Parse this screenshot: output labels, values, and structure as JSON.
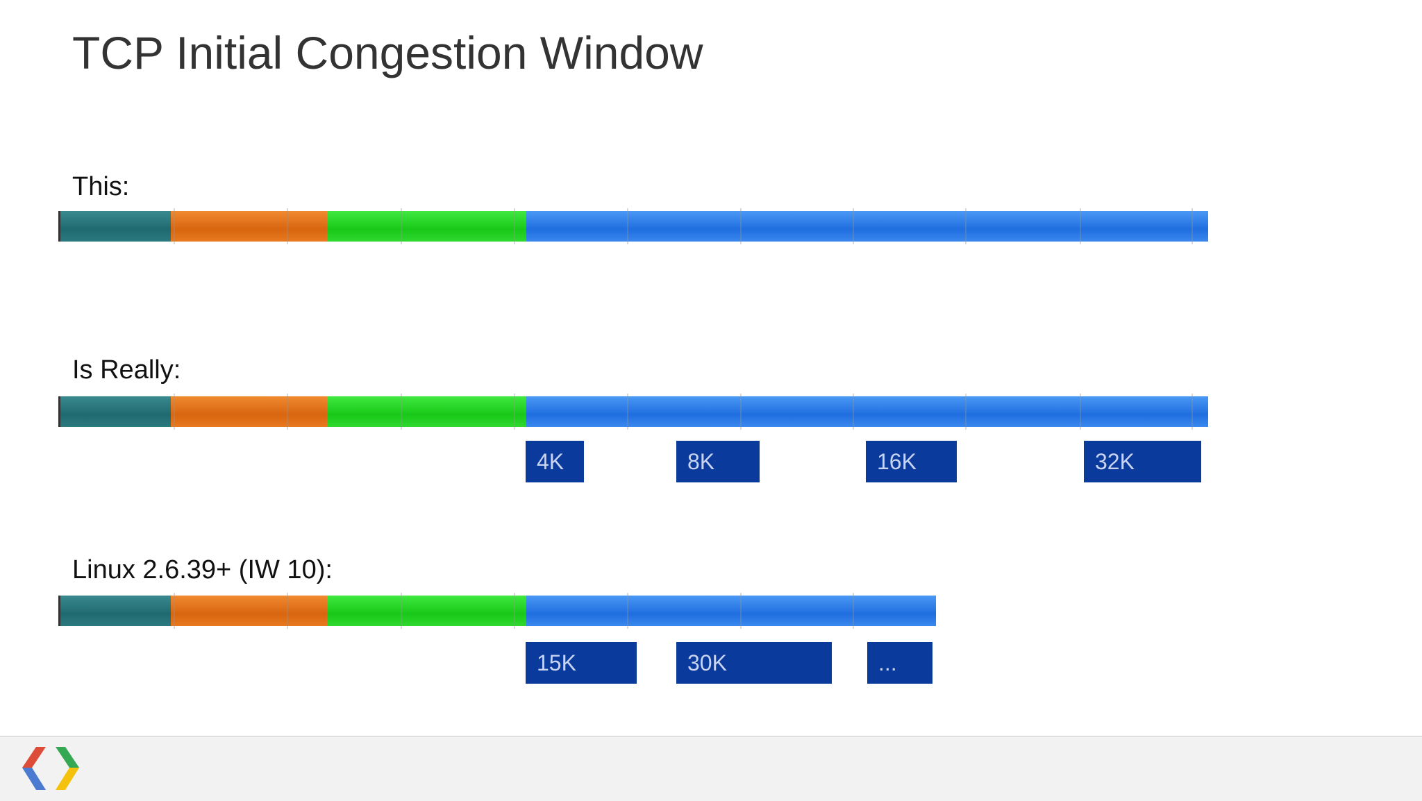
{
  "title": "TCP Initial Congestion Window",
  "sections": [
    {
      "label": "This:",
      "boxes": []
    },
    {
      "label": "Is Really:",
      "boxes": [
        "4K",
        "8K",
        "16K",
        "32K"
      ]
    },
    {
      "label": "Linux 2.6.39+ (IW 10):",
      "boxes": [
        "15K",
        "30K",
        "..."
      ]
    }
  ]
}
